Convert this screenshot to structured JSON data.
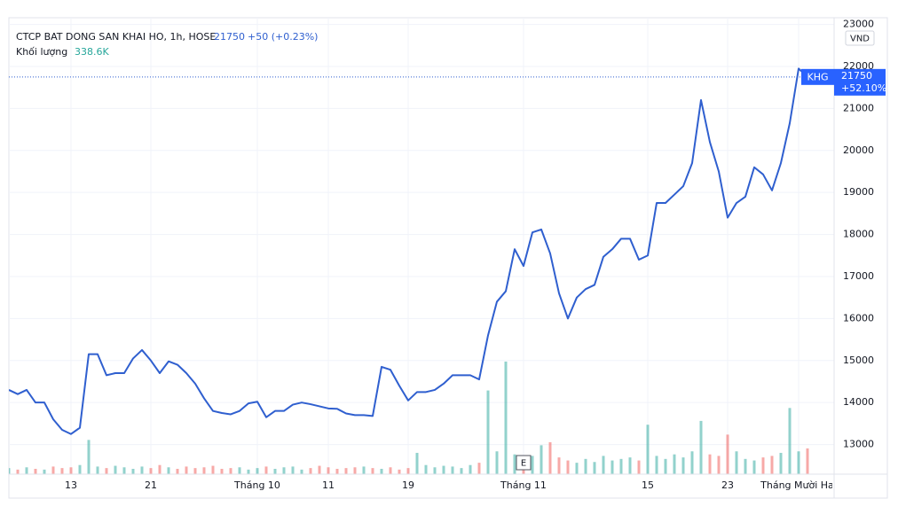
{
  "header": {
    "title": "CTCP BAT DONG SAN KHAI HO, 1h, HOSE",
    "price": "21750",
    "change": "+50 (+0.23%)",
    "volume": "338.6K"
  },
  "price_tag": {
    "price": "21750",
    "change_pct": "+52.10%"
  },
  "currency": "VND",
  "marker": "E",
  "chart_data": {
    "type": "line",
    "categories": [
      null,
      null,
      null,
      null,
      null,
      null,
      null,
      "13",
      null,
      null,
      null,
      null,
      null,
      null,
      null,
      null,
      "21",
      null,
      null,
      null,
      null,
      null,
      null,
      null,
      null,
      null,
      null,
      null,
      "Tháng 10",
      null,
      null,
      null,
      null,
      null,
      null,
      null,
      "11",
      null,
      null,
      null,
      null,
      null,
      null,
      null,
      null,
      "19",
      null,
      null,
      null,
      null,
      null,
      null,
      null,
      null,
      null,
      null,
      null,
      null,
      "Tháng 11",
      null,
      null,
      null,
      null,
      null,
      null,
      null,
      null,
      null,
      null,
      null,
      null,
      null,
      "15",
      null,
      null,
      null,
      null,
      null,
      null,
      null,
      null,
      "23",
      null,
      null,
      null,
      null,
      null,
      null,
      null,
      "Tháng Mười Hai",
      null
    ],
    "series": [
      {
        "name": "KHG",
        "color": "#2f5fcf",
        "values": [
          14300,
          14200,
          14300,
          14000,
          14000,
          13600,
          13350,
          13250,
          13400,
          15150,
          15150,
          14650,
          14700,
          14700,
          15050,
          15250,
          15000,
          14700,
          14980,
          14900,
          14700,
          14450,
          14100,
          13800,
          13750,
          13720,
          13800,
          13980,
          14020,
          13650,
          13800,
          13800,
          13950,
          14000,
          13960,
          13910,
          13860,
          13850,
          13740,
          13700,
          13700,
          13680,
          14850,
          14780,
          14400,
          14050,
          14250,
          14250,
          14300,
          14450,
          14650,
          14650,
          14650,
          14550,
          15600,
          16400,
          16650,
          17650,
          17250,
          18050,
          18120,
          17550,
          16600,
          16000,
          16500,
          16700,
          16800,
          17470,
          17650,
          17900,
          17900,
          17400,
          17500,
          18750,
          18750,
          18950,
          19150,
          19700,
          21200,
          20200,
          19500,
          18400,
          18750,
          18900,
          19600,
          19430,
          19050,
          19700,
          20650,
          21950,
          21750
        ]
      },
      {
        "name": "Khối lượng",
        "type": "bar",
        "axis": "y2",
        "color": "#26a69a",
        "down_color": "#ef5350",
        "values": [
          80,
          60,
          90,
          70,
          60,
          100,
          80,
          90,
          120,
          450,
          100,
          80,
          110,
          90,
          70,
          100,
          80,
          120,
          90,
          70,
          100,
          80,
          90,
          110,
          70,
          80,
          90,
          60,
          80,
          100,
          70,
          90,
          100,
          60,
          80,
          110,
          90,
          70,
          80,
          90,
          100,
          80,
          70,
          90,
          60,
          80,
          280,
          120,
          90,
          110,
          100,
          80,
          120,
          150,
          1100,
          300,
          1480,
          260,
          180,
          240,
          380,
          420,
          220,
          180,
          150,
          200,
          160,
          240,
          180,
          200,
          220,
          180,
          650,
          240,
          200,
          260,
          220,
          300,
          700,
          260,
          240,
          520,
          300,
          200,
          180,
          220,
          240,
          280,
          870,
          300,
          338.6
        ]
      }
    ],
    "ylim": [
      12295,
      23160
    ],
    "yticks": [
      13000,
      14000,
      15000,
      16000,
      17000,
      18000,
      19000,
      20000,
      21000,
      22000,
      23000
    ],
    "y2lim": [
      0,
      6000
    ],
    "grid": true
  }
}
